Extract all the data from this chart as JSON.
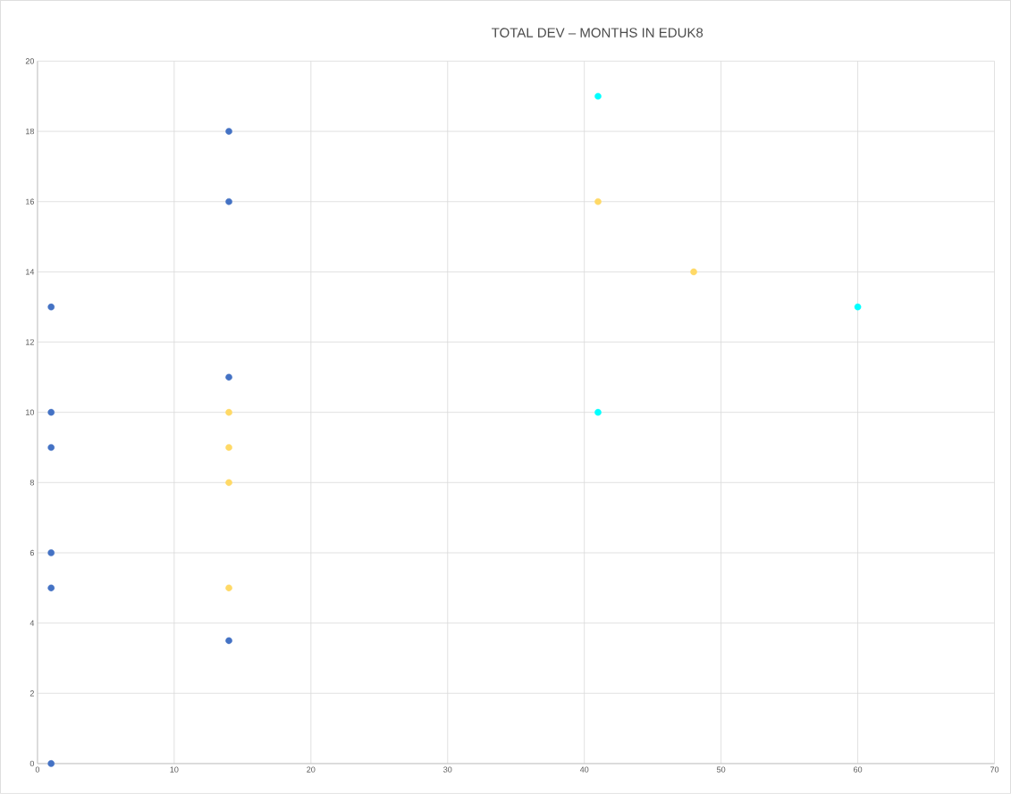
{
  "chart_data": {
    "type": "scatter",
    "title": "TOTAL DEV – MONTHS IN EDUK8",
    "xlim": [
      0,
      70
    ],
    "xticks": [
      0,
      10,
      20,
      30,
      40,
      50,
      60,
      70
    ],
    "ylim": [
      0,
      20
    ],
    "yticks": [
      0,
      2,
      4,
      6,
      8,
      10,
      12,
      14,
      16,
      18,
      20
    ],
    "grid": true,
    "series": [
      {
        "color": "#4472c4",
        "x": [
          1,
          1,
          1,
          1,
          1,
          1,
          14,
          14,
          14,
          14
        ],
        "values": [
          13,
          10,
          9,
          6,
          5,
          0,
          18,
          16,
          11,
          3.5
        ]
      },
      {
        "color": "#ffd966",
        "x": [
          14,
          14,
          14,
          14,
          41,
          48
        ],
        "values": [
          10,
          9,
          8,
          5,
          16,
          14
        ]
      },
      {
        "color": "#00ffff",
        "x": [
          41,
          41,
          60
        ],
        "values": [
          19,
          10,
          13
        ]
      }
    ]
  }
}
